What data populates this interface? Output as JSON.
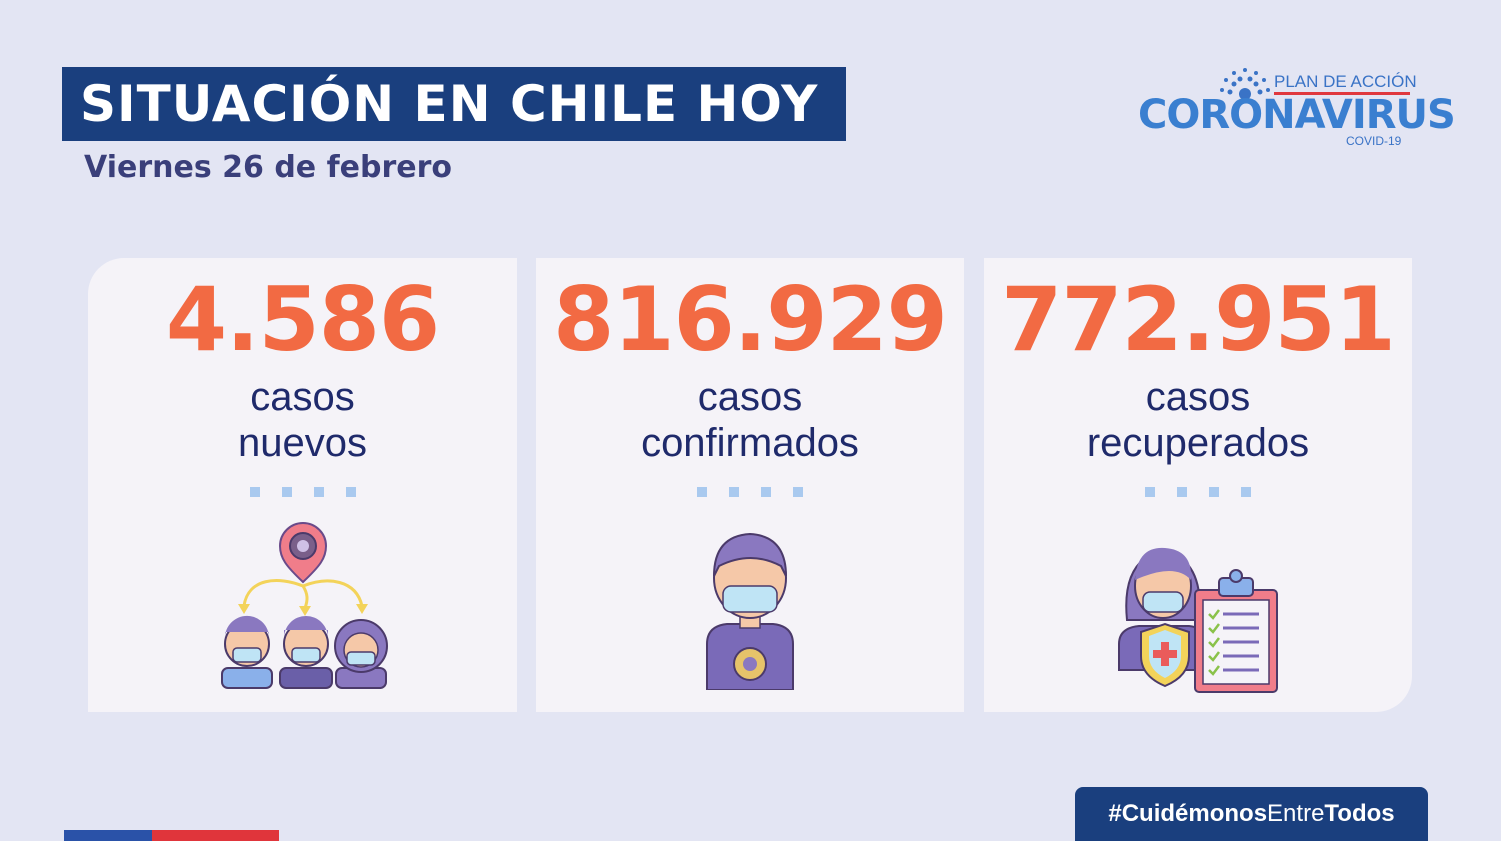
{
  "header": {
    "title": "SITUACIÓN EN CHILE HOY",
    "date": "Viernes 26 de febrero"
  },
  "logo": {
    "top": "PLAN DE ACCIÓN",
    "main": "CORONAVIRUS",
    "sub": "COVID-19"
  },
  "cards": [
    {
      "value": "4.586",
      "label_line1": "casos",
      "label_line2": "nuevos",
      "icon": "contagion-people-icon"
    },
    {
      "value": "816.929",
      "label_line1": "casos",
      "label_line2": "confirmados",
      "icon": "masked-person-virus-icon"
    },
    {
      "value": "772.951",
      "label_line1": "casos",
      "label_line2": "recuperados",
      "icon": "recovered-clipboard-icon"
    }
  ],
  "footer": {
    "hashtag_a": "#Cuidémonos",
    "hashtag_b": "Entre",
    "hashtag_c": "Todos"
  },
  "colors": {
    "background": "#e3e5f3",
    "navy": "#1a3f7e",
    "accent_orange": "#f26a43",
    "label_text": "#1f2a6b",
    "dot_blue": "#a9c9ef"
  }
}
